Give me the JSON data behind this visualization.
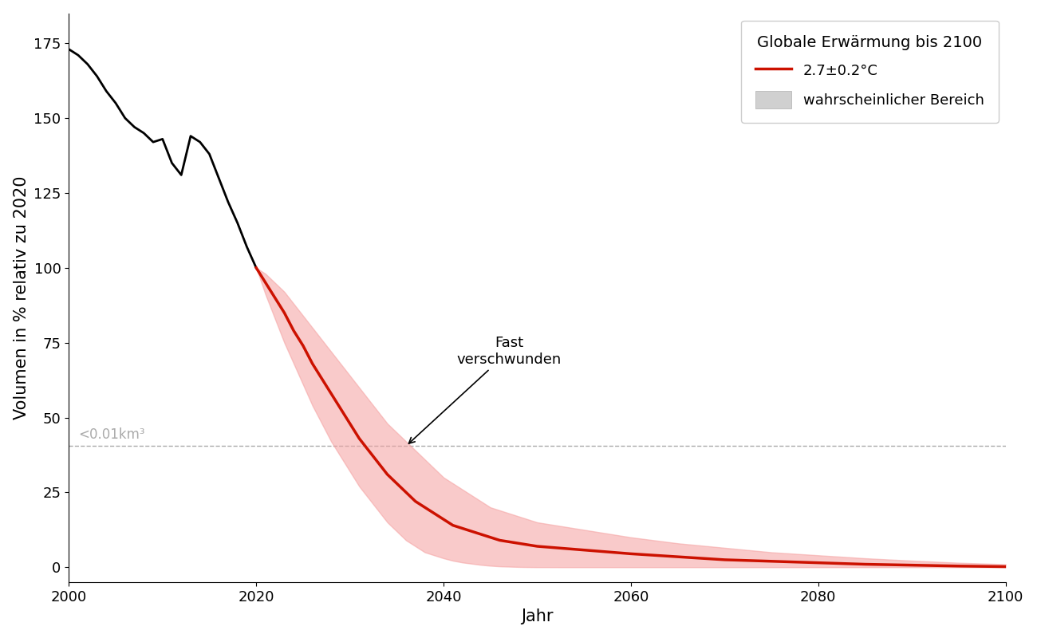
{
  "title": "Globale Erwärmung bis 2100",
  "xlabel": "Jahr",
  "ylabel": "Volumen in % relativ zu 2020",
  "line_color_historical": "#000000",
  "line_color_projection": "#cc1100",
  "fill_color": "#f5a0a0",
  "fill_alpha": 0.55,
  "threshold_value": 40.5,
  "threshold_label": "<0.01km³",
  "threshold_color": "#aaaaaa",
  "annotation_text": "Fast\nverschwunden",
  "legend_title": "Globale Erwärmung bis 2100",
  "legend_line_label": "2.7±0.2°C",
  "legend_fill_label": "wahrscheinlicher Bereich",
  "xlim": [
    2000,
    2100
  ],
  "ylim": [
    -5,
    185
  ],
  "yticks": [
    0,
    25,
    50,
    75,
    100,
    125,
    150,
    175
  ],
  "xticks": [
    2000,
    2020,
    2040,
    2060,
    2080,
    2100
  ],
  "historical_years": [
    2000,
    2001,
    2002,
    2003,
    2004,
    2005,
    2006,
    2007,
    2008,
    2009,
    2010,
    2011,
    2012,
    2013,
    2014,
    2015,
    2016,
    2017,
    2018,
    2019,
    2020
  ],
  "historical_values": [
    173,
    171,
    168,
    164,
    159,
    155,
    150,
    147,
    145,
    142,
    143,
    135,
    131,
    144,
    142,
    138,
    130,
    122,
    115,
    107,
    100
  ],
  "projection_years": [
    2020,
    2021,
    2022,
    2023,
    2024,
    2025,
    2026,
    2027,
    2028,
    2029,
    2030,
    2031,
    2032,
    2033,
    2034,
    2035,
    2036,
    2037,
    2038,
    2039,
    2040,
    2041,
    2042,
    2043,
    2044,
    2045,
    2046,
    2047,
    2048,
    2049,
    2050,
    2052,
    2054,
    2056,
    2058,
    2060,
    2065,
    2070,
    2075,
    2080,
    2085,
    2090,
    2095,
    2100
  ],
  "projection_mean": [
    100,
    95,
    90,
    85,
    79,
    74,
    68,
    63,
    58,
    53,
    48,
    43,
    39,
    35,
    31,
    28,
    25,
    22,
    20,
    18,
    16,
    14,
    13,
    12,
    11,
    10,
    9,
    8.5,
    8,
    7.5,
    7,
    6.5,
    6,
    5.5,
    5,
    4.5,
    3.5,
    2.5,
    2.0,
    1.5,
    1.0,
    0.7,
    0.4,
    0.2
  ],
  "projection_upper": [
    100,
    98,
    95,
    92,
    88,
    84,
    80,
    76,
    72,
    68,
    64,
    60,
    56,
    52,
    48,
    45,
    42,
    39,
    36,
    33,
    30,
    28,
    26,
    24,
    22,
    20,
    19,
    18,
    17,
    16,
    15,
    14,
    13,
    12,
    11,
    10,
    8,
    6.5,
    5,
    4,
    3,
    2.2,
    1.5,
    1.0
  ],
  "projection_lower": [
    100,
    91,
    83,
    75,
    68,
    61,
    54,
    48,
    42,
    37,
    32,
    27,
    23,
    19,
    15,
    12,
    9,
    7,
    5,
    4,
    3,
    2.2,
    1.6,
    1.2,
    0.8,
    0.5,
    0.3,
    0.2,
    0.1,
    0.05,
    0.02,
    0.01,
    0,
    0,
    0,
    0,
    0,
    0,
    0,
    0,
    0,
    0,
    0,
    0
  ]
}
